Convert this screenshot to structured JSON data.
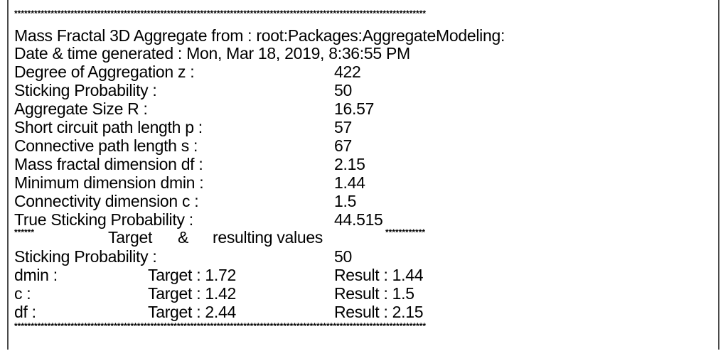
{
  "report": {
    "stars_top": "****************************************************************************************************************************",
    "stars_bottom": "****************************************************************************************************************************",
    "title": "Mass Fractal 3D Aggregate from : root:Packages:AggregateModeling:",
    "date_line": "Date & time generated : Mon, Mar 18, 2019, 8:36:55 PM",
    "rows": [
      {
        "label": "Degree of Aggregation z :",
        "value": "422"
      },
      {
        "label": "Sticking Probability :",
        "value": "50"
      },
      {
        "label": "Aggregate Size R :",
        "value": "16.57"
      },
      {
        "label": "Short circuit path length p :",
        "value": "57"
      },
      {
        "label": "Connective path length s :",
        "value": "67"
      },
      {
        "label": "Mass fractal dimension df :",
        "value": "2.15"
      },
      {
        "label": "Minimum dimension dmin :",
        "value": "1.44"
      },
      {
        "label": "Connectivity dimension c :",
        "value": "1.5"
      },
      {
        "label": "True Sticking Probability :",
        "value": "44.515"
      }
    ],
    "target_header": {
      "stars_left": "******",
      "target_word": "Target",
      "amp": "&",
      "resulting_values": "resulting values",
      "stars_right": "************"
    },
    "target_sticking": {
      "label": "Sticking Probability :",
      "value": "50"
    },
    "targets": [
      {
        "label": "dmin :",
        "target": "Target : 1.72",
        "result": "Result : 1.44"
      },
      {
        "label": "c :",
        "target": "Target : 1.42",
        "result": "Result : 1.5"
      },
      {
        "label": "df :",
        "target": "Target : 2.44",
        "result": "Result : 2.15"
      }
    ]
  }
}
